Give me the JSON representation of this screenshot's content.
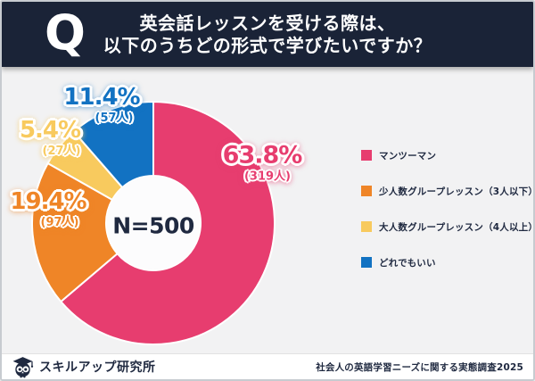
{
  "header": {
    "q_mark": "Q",
    "title_line1": "英会話レッスンを受ける際は、",
    "title_line2": "以下のうちどの形式で学びたいですか？"
  },
  "chart_data": {
    "type": "pie",
    "subtype": "donut",
    "title": "英会話レッスンを受ける際は、以下のうちどの形式で学びたいですか？",
    "center_label": "N=500",
    "total_responses": 500,
    "start_angle_deg": 0,
    "direction": "clockwise",
    "legend_position": "right",
    "segments": [
      {
        "label": "マンツーマン",
        "percent": 63.8,
        "percent_label": "63.8%",
        "count": 319,
        "count_label": "(319人)",
        "color": "#e73d6f",
        "glow": "rgba(231,61,111,0.55)"
      },
      {
        "label": "少人数グループレッスン（3人以下）",
        "percent": 19.4,
        "percent_label": "19.4%",
        "count": 97,
        "count_label": "(97人)",
        "color": "#ef8527",
        "glow": "rgba(239,133,39,0.55)"
      },
      {
        "label": "大人数グループレッスン（4人以上）",
        "percent": 5.4,
        "percent_label": "5.4%",
        "count": 27,
        "count_label": "(27人)",
        "color": "#f8ca5e",
        "glow": "rgba(248,202,94,0.7)"
      },
      {
        "label": "どれでもいい",
        "percent": 11.4,
        "percent_label": "11.4%",
        "count": 57,
        "count_label": "(57人)",
        "color": "#1272c2",
        "glow": "rgba(18,114,194,0.5)"
      }
    ]
  },
  "footer": {
    "brand": "スキルアップ研究所",
    "source": "社会人の英語学習ニーズに関する実態調査2025"
  },
  "colors": {
    "header_bg": "#1a2337",
    "chart_bg": "#f2f2f3",
    "donut_hole": "#fcfcfd",
    "text_dark": "#1f2940",
    "slice_gap": "#ffffff"
  }
}
